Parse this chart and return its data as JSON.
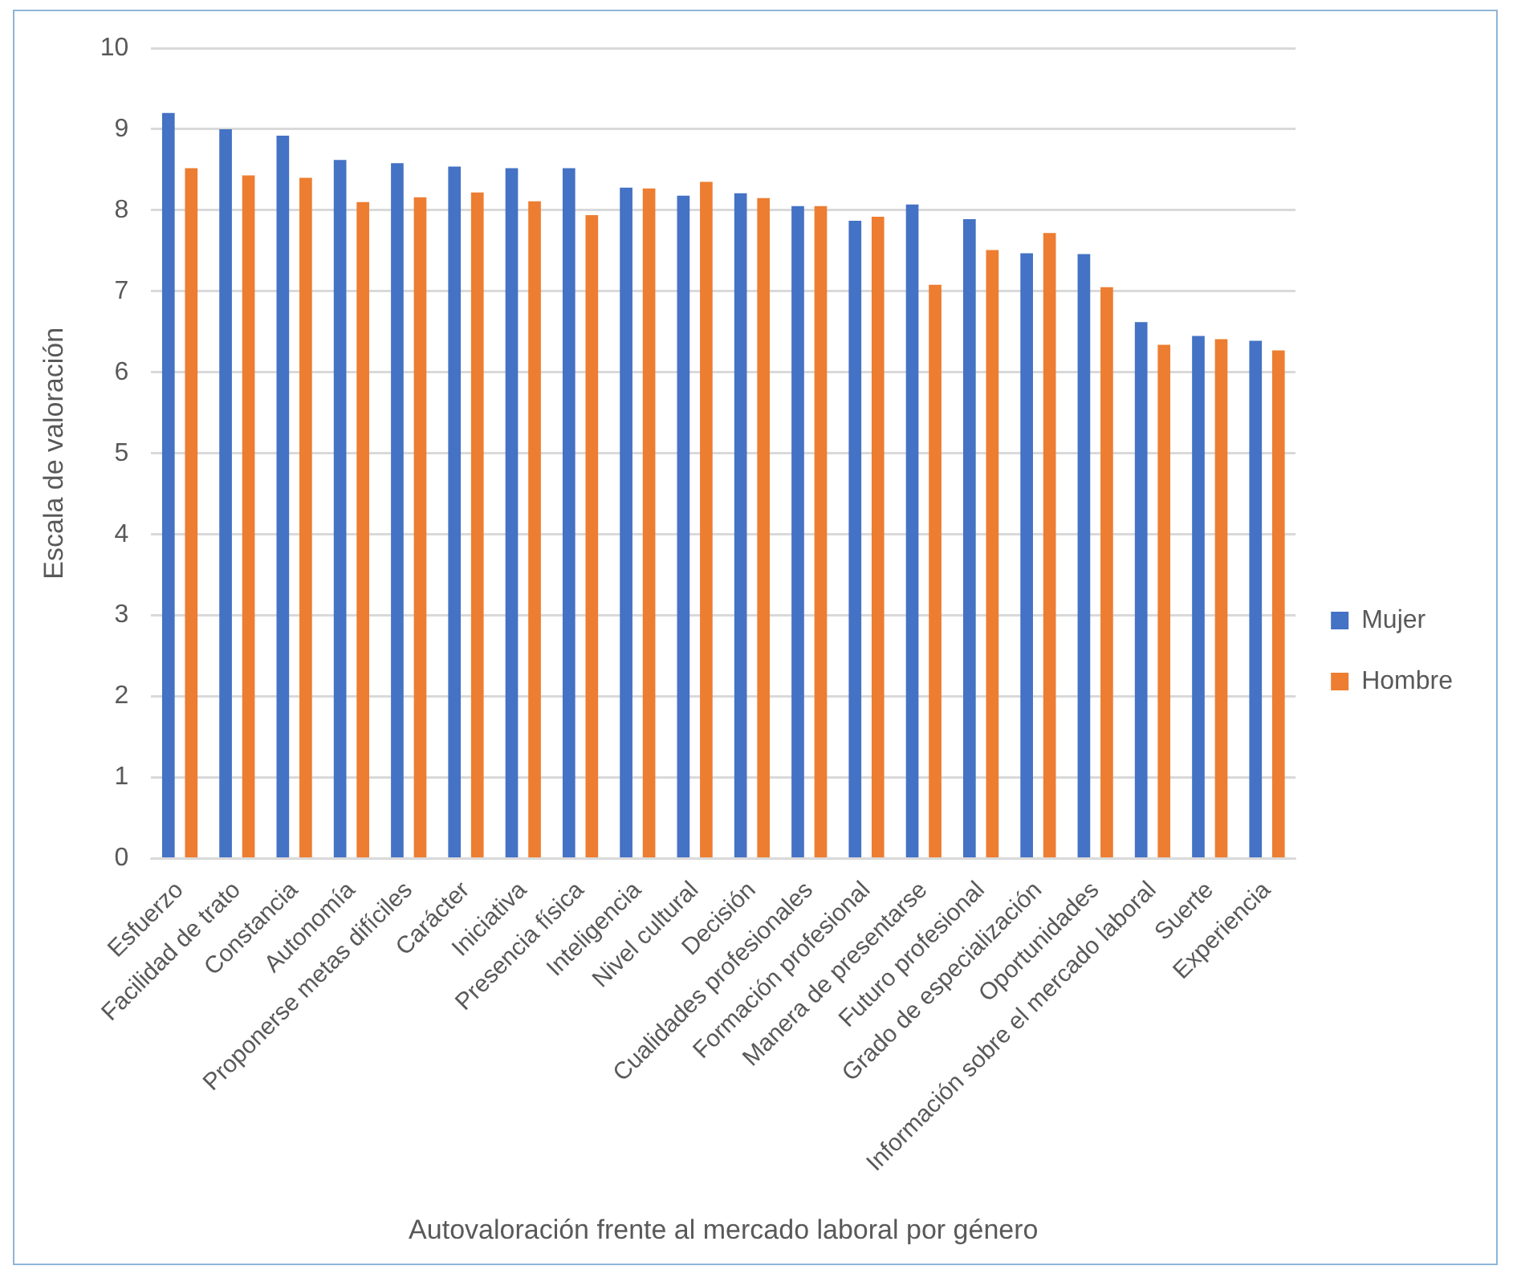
{
  "chart_data": {
    "type": "bar",
    "xlabel": "Autovaloración frente al mercado laboral por género",
    "ylabel": "Escala de valoración",
    "categories": [
      "Esfuerzo",
      "Facilidad de trato",
      "Constancia",
      "Autonomía",
      "Proponerse metas difíciles",
      "Carácter",
      "Iniciativa",
      "Presencia física",
      "Inteligencia",
      "Nivel cultural",
      "Decisión",
      "Cualidades profesionales",
      "Formación profesional",
      "Manera de presentarse",
      "Futuro profesional",
      "Grado de especialización",
      "Oportunidades",
      "Información sobre el mercado laboral",
      "Suerte",
      "Experiencia"
    ],
    "series": [
      {
        "name": "Mujer",
        "color": "#4472c4",
        "values": [
          9.2,
          9.0,
          8.92,
          8.62,
          8.58,
          8.54,
          8.52,
          8.52,
          8.28,
          8.18,
          8.21,
          8.05,
          7.87,
          8.07,
          7.89,
          7.47,
          7.46,
          6.62,
          6.45,
          6.39
        ]
      },
      {
        "name": "Hombre",
        "color": "#ed7d31",
        "values": [
          8.52,
          8.43,
          8.4,
          8.1,
          8.16,
          8.22,
          8.11,
          7.94,
          8.27,
          8.35,
          8.15,
          8.05,
          7.92,
          7.08,
          7.51,
          7.72,
          7.05,
          6.34,
          6.41,
          6.27
        ]
      }
    ],
    "ylim": [
      0,
      10
    ],
    "yticks": [
      0,
      1,
      2,
      3,
      4,
      5,
      6,
      7,
      8,
      9,
      10
    ],
    "grid": "y",
    "legend": "right"
  }
}
